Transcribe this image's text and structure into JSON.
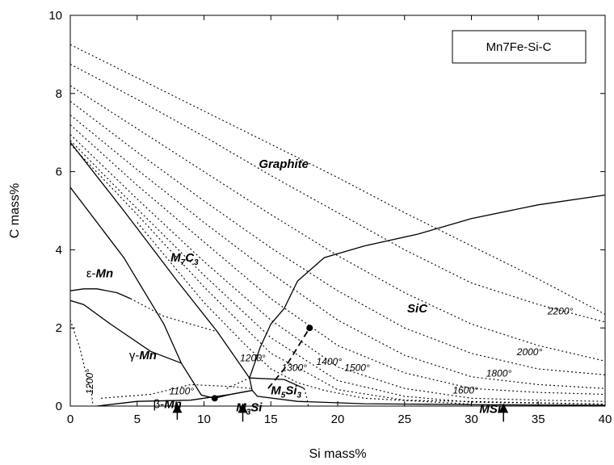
{
  "chart_data": {
    "type": "line",
    "xlabel": "Si mass%",
    "ylabel": "C mass%",
    "xlim": [
      0,
      40
    ],
    "ylim": [
      0,
      10
    ],
    "x_ticks": [
      0,
      5,
      10,
      15,
      20,
      25,
      30,
      35,
      40
    ],
    "y_ticks": [
      0,
      2,
      4,
      6,
      8,
      10
    ],
    "grid": false,
    "legend_box": "Mn7Fe-Si-C",
    "legend_position": "top-right",
    "phase_boundaries": [
      {
        "style": "solid",
        "points": [
          [
            0,
            6.75
          ],
          [
            4,
            5.0
          ],
          [
            8,
            3.2
          ],
          [
            11,
            1.9
          ],
          [
            13.4,
            0.72
          ]
        ]
      },
      {
        "style": "solid",
        "points": [
          [
            0,
            5.6
          ],
          [
            4,
            3.8
          ],
          [
            7,
            2.1
          ],
          [
            8.3,
            1.1
          ],
          [
            9.8,
            0.28
          ],
          [
            10.8,
            0.2
          ]
        ]
      },
      {
        "style": "solid",
        "points": [
          [
            0,
            2.7
          ],
          [
            1,
            2.6
          ],
          [
            3,
            2.1
          ],
          [
            6,
            1.4
          ],
          [
            8.3,
            1.1
          ]
        ]
      },
      {
        "style": "solid",
        "points": [
          [
            0,
            2.95
          ],
          [
            1,
            3.0
          ],
          [
            2,
            3.0
          ],
          [
            3.5,
            2.9
          ],
          [
            4.5,
            2.75
          ]
        ]
      },
      {
        "style": "solid",
        "points": [
          [
            2,
            0.0
          ],
          [
            5,
            0.12
          ],
          [
            9,
            0.15
          ],
          [
            12,
            0.3
          ],
          [
            13.6,
            0.4
          ]
        ]
      },
      {
        "style": "solid",
        "points": [
          [
            10.8,
            0.2
          ],
          [
            12,
            0.3
          ],
          [
            13.6,
            0.4
          ]
        ]
      },
      {
        "style": "solid",
        "points": [
          [
            13.4,
            0.72
          ],
          [
            13.6,
            0.4
          ],
          [
            14,
            0.25
          ],
          [
            17,
            0.12
          ],
          [
            22,
            0.06
          ],
          [
            32,
            0.03
          ],
          [
            40,
            0.02
          ]
        ]
      },
      {
        "style": "solid",
        "points": [
          [
            13.4,
            0.72
          ],
          [
            14.2,
            1.5
          ],
          [
            15,
            2.1
          ],
          [
            16,
            2.5
          ],
          [
            17,
            3.2
          ],
          [
            19,
            3.8
          ],
          [
            22,
            4.1
          ],
          [
            26,
            4.4
          ],
          [
            30,
            4.8
          ],
          [
            35,
            5.15
          ],
          [
            40,
            5.4
          ]
        ]
      },
      {
        "style": "solid",
        "points": [
          [
            13.4,
            0.72
          ],
          [
            16,
            0.68
          ],
          [
            17.5,
            0.45
          ]
        ]
      },
      {
        "style": "dashed",
        "points": [
          [
            14.8,
            0.45
          ],
          [
            16,
            0.95
          ],
          [
            17,
            1.5
          ],
          [
            17.9,
            2.0
          ]
        ]
      },
      {
        "style": "dotted",
        "points": [
          [
            0,
            2.2
          ],
          [
            0.7,
            1.5
          ],
          [
            1.2,
            0.8
          ],
          [
            1.6,
            0.3
          ],
          [
            1.7,
            0.0
          ]
        ]
      },
      {
        "style": "dotted",
        "points": [
          [
            2.3,
            0.2
          ],
          [
            6,
            0.3
          ],
          [
            9,
            0.55
          ],
          [
            12,
            0.5
          ],
          [
            13.5,
            0.45
          ]
        ]
      },
      {
        "style": "dotted",
        "points": [
          [
            4.5,
            2.75
          ],
          [
            7,
            2.3
          ],
          [
            9,
            2.1
          ],
          [
            11,
            1.9
          ]
        ]
      },
      {
        "style": "dotted",
        "points": [
          [
            11.7,
            0.45
          ],
          [
            13.4,
            0.72
          ]
        ]
      },
      {
        "style": "dotted",
        "points": [
          [
            17.5,
            0.45
          ],
          [
            17.7,
            0.2
          ],
          [
            17.8,
            0.0
          ]
        ]
      }
    ],
    "isotherms": [
      {
        "label": "",
        "points": [
          [
            0,
            9.25
          ],
          [
            5,
            8.4
          ],
          [
            10,
            7.55
          ],
          [
            15,
            6.7
          ],
          [
            20,
            5.85
          ],
          [
            25,
            4.95
          ],
          [
            30,
            4.1
          ],
          [
            35,
            3.25
          ],
          [
            40,
            2.35
          ]
        ]
      },
      {
        "label": "2200°",
        "points": [
          [
            0,
            8.75
          ],
          [
            5,
            7.85
          ],
          [
            10,
            6.9
          ],
          [
            15,
            5.9
          ],
          [
            20,
            4.95
          ],
          [
            25,
            4.0
          ],
          [
            30,
            3.15
          ],
          [
            35,
            2.6
          ],
          [
            40,
            2.15
          ]
        ]
      },
      {
        "label": "",
        "points": [
          [
            0,
            8.2
          ],
          [
            5,
            7.1
          ],
          [
            10,
            6.0
          ],
          [
            15,
            4.9
          ],
          [
            20,
            3.85
          ],
          [
            25,
            2.9
          ],
          [
            30,
            2.1
          ],
          [
            35,
            1.55
          ],
          [
            40,
            1.15
          ]
        ]
      },
      {
        "label": "2000°",
        "points": [
          [
            0,
            7.8
          ],
          [
            5,
            6.5
          ],
          [
            10,
            5.25
          ],
          [
            15,
            4.05
          ],
          [
            20,
            2.95
          ],
          [
            25,
            2.0
          ],
          [
            30,
            1.35
          ],
          [
            35,
            0.95
          ],
          [
            40,
            0.8
          ]
        ]
      },
      {
        "label": "",
        "points": [
          [
            0,
            7.45
          ],
          [
            5,
            6.05
          ],
          [
            10,
            4.7
          ],
          [
            15,
            3.4
          ],
          [
            20,
            2.2
          ],
          [
            25,
            1.3
          ],
          [
            30,
            0.75
          ],
          [
            35,
            0.55
          ],
          [
            40,
            0.45
          ]
        ]
      },
      {
        "label": "1800°",
        "points": [
          [
            0,
            7.2
          ],
          [
            5,
            5.65
          ],
          [
            10,
            4.2
          ],
          [
            15,
            2.75
          ],
          [
            20,
            1.55
          ],
          [
            25,
            0.85
          ],
          [
            30,
            0.45
          ],
          [
            35,
            0.35
          ],
          [
            40,
            0.3
          ]
        ]
      },
      {
        "label": "1600°",
        "points": [
          [
            0,
            6.95
          ],
          [
            5,
            5.3
          ],
          [
            10,
            3.7
          ],
          [
            15,
            2.2
          ],
          [
            20,
            1.0
          ],
          [
            25,
            0.45
          ],
          [
            30,
            0.2
          ],
          [
            35,
            0.15
          ],
          [
            40,
            0.12
          ]
        ]
      },
      {
        "label": "1500°",
        "points": [
          [
            0,
            6.8
          ],
          [
            5,
            5.05
          ],
          [
            10,
            3.35
          ],
          [
            15,
            1.75
          ],
          [
            20,
            0.65
          ],
          [
            25,
            0.25
          ],
          [
            30,
            0.1
          ],
          [
            40,
            0.05
          ]
        ]
      },
      {
        "label": "1400°",
        "points": [
          [
            0,
            6.7
          ],
          [
            5,
            4.9
          ],
          [
            10,
            3.05
          ],
          [
            15,
            1.35
          ],
          [
            18,
            0.8
          ],
          [
            20,
            0.42
          ],
          [
            25,
            0.15
          ],
          [
            40,
            0.05
          ]
        ]
      },
      {
        "label": "1300°",
        "points": [
          [
            5,
            4.7
          ],
          [
            10,
            2.65
          ],
          [
            13,
            1.6
          ],
          [
            15,
            0.95
          ],
          [
            17,
            0.6
          ],
          [
            19,
            0.4
          ],
          [
            22,
            0.2
          ],
          [
            30,
            0.05
          ]
        ]
      }
    ],
    "points": [
      [
        10.8,
        0.2
      ],
      [
        17.9,
        2.0
      ]
    ],
    "annotations": [
      {
        "text": "Graphite",
        "x": 14.1,
        "y": 6.1
      },
      {
        "text": "SiC",
        "x": 25.2,
        "y": 2.4
      },
      {
        "prefix": "ε-",
        "text": "Mn",
        "x": 1.2,
        "y": 3.3
      },
      {
        "prefix": "γ-",
        "text": "Mn",
        "x": 4.4,
        "y": 1.2
      },
      {
        "prefix": "β-",
        "text": "Mn",
        "x": 6.2,
        "y": -0.05
      },
      {
        "parts": [
          [
            "M",
            ""
          ],
          [
            "7",
            "sub"
          ],
          [
            "C",
            ""
          ],
          [
            "3",
            "sub"
          ]
        ],
        "x": 7.5,
        "y": 3.7
      },
      {
        "parts": [
          [
            "M",
            ""
          ],
          [
            "5",
            "sub"
          ],
          [
            "Si",
            ""
          ],
          [
            "3",
            "sub"
          ]
        ],
        "x": 15.0,
        "y": 0.3
      },
      {
        "parts": [
          [
            "M",
            ""
          ],
          [
            "3",
            "sub"
          ],
          [
            "Si",
            ""
          ]
        ],
        "x": 12.4,
        "y": -0.13
      },
      {
        "text": "MSi",
        "x": 30.6,
        "y": -0.18
      }
    ],
    "isotherm_labels": [
      {
        "text": "2200°",
        "x": 35.7,
        "y": 2.35
      },
      {
        "text": "2000°",
        "x": 33.4,
        "y": 1.3
      },
      {
        "text": "1800°",
        "x": 31.1,
        "y": 0.75
      },
      {
        "text": "1600°",
        "x": 28.6,
        "y": 0.32
      },
      {
        "text": "1500°",
        "x": 20.5,
        "y": 0.9
      },
      {
        "text": "1400°",
        "x": 18.4,
        "y": 1.05
      },
      {
        "text": "1300°",
        "x": 15.8,
        "y": 0.9
      },
      {
        "text": "1200°",
        "x": 12.7,
        "y": 1.15
      },
      {
        "text": "1100°",
        "x": 7.4,
        "y": 0.3
      },
      {
        "text": "1200°",
        "x": 1.7,
        "y": 0.3,
        "rotate": true
      }
    ],
    "arrows": [
      {
        "x": 8.0,
        "from_y": -0.35,
        "to_y": -0.05
      },
      {
        "x": 12.9,
        "from_y": -0.4,
        "to_y": -0.05
      },
      {
        "x": 32.4,
        "from_y": -0.4,
        "to_y": -0.05
      }
    ]
  }
}
